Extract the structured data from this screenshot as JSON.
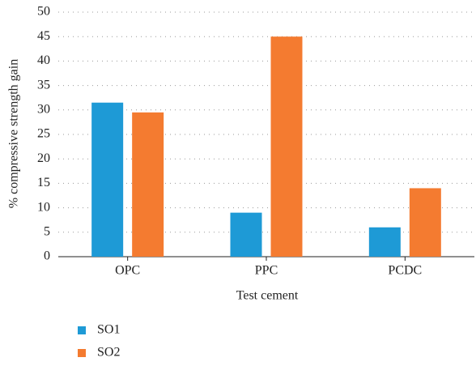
{
  "chart_data": {
    "type": "bar",
    "x_label": "Test cement",
    "y_label": "% compressive strength gain",
    "categories": [
      "OPC",
      "PPC",
      "PCDC"
    ],
    "series": [
      {
        "name": "SO1",
        "color": "#1e9ad6",
        "values": [
          31.5,
          9,
          6
        ]
      },
      {
        "name": "SO2",
        "color": "#f47b30",
        "values": [
          29.5,
          45,
          14
        ]
      }
    ],
    "ylim": [
      0,
      50
    ],
    "yticks": [
      0,
      5,
      10,
      15,
      20,
      25,
      30,
      35,
      40,
      45,
      50
    ],
    "grid": true
  }
}
